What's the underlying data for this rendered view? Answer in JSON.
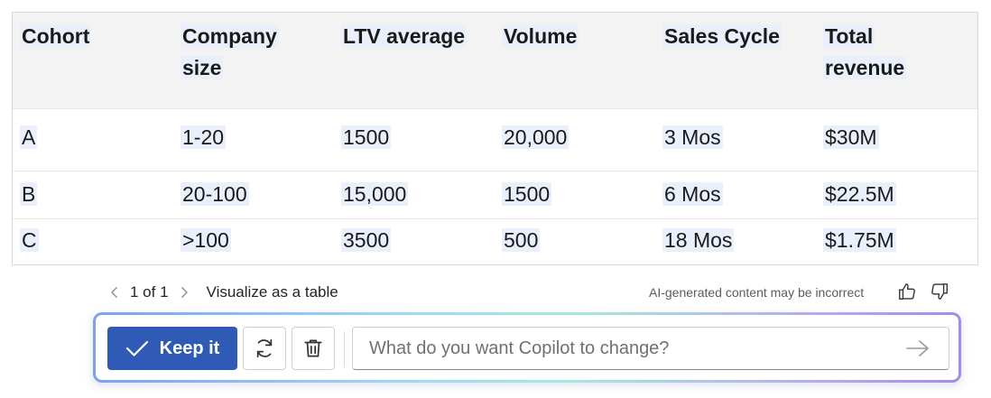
{
  "table": {
    "headers": [
      [
        "Cohort"
      ],
      [
        "Company",
        "size"
      ],
      [
        "LTV average"
      ],
      [
        "Volume"
      ],
      [
        "Sales Cycle"
      ],
      [
        "Total",
        "revenue"
      ]
    ],
    "rows": [
      [
        "A",
        "1-20",
        "1500",
        "20,000",
        "3 Mos",
        "$30M"
      ],
      [
        "B",
        "20-100",
        "15,000",
        "1500",
        "6 Mos",
        "$22.5M"
      ],
      [
        "C",
        ">100",
        "3500",
        "500",
        "18 Mos",
        "$1.75M"
      ]
    ]
  },
  "pager": {
    "count": "1 of 1",
    "description": "Visualize as a table",
    "disclaimer": "AI-generated content may be incorrect"
  },
  "copilot_bar": {
    "keep_label": "Keep it",
    "input_placeholder": "What do you want Copilot to change?",
    "input_value": "",
    "accent_color": "#2f5bb7"
  },
  "icons": {
    "prev": "chevron-left-icon",
    "next": "chevron-right-icon",
    "like": "thumbs-up-icon",
    "dislike": "thumbs-down-icon",
    "keep": "checkmark-icon",
    "regenerate": "refresh-icon",
    "discard": "trash-icon",
    "send": "arrow-right-icon"
  }
}
